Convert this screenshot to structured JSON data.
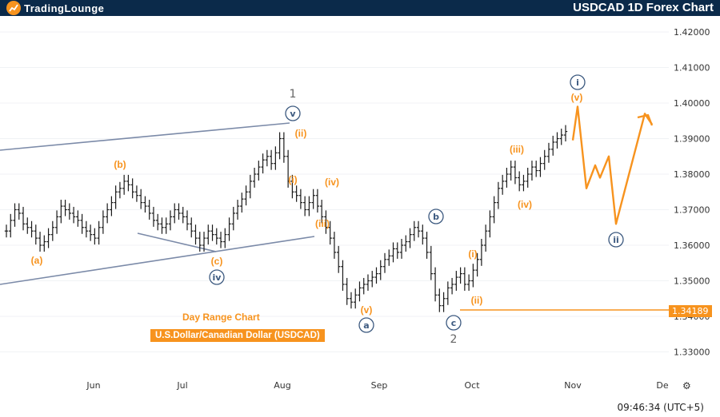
{
  "header": {
    "brand": "TradingLounge",
    "title": "USDCAD 1D Forex Chart"
  },
  "captions": {
    "chart_kind": "Day Range Chart",
    "instrument": "U.S.Dollar/Canadian Dollar (USDCAD)"
  },
  "price_tag": "1.34189",
  "clock": "09:46:34 (UTC+5)",
  "colors": {
    "header_bg": "#0b2a4a",
    "accent_orange": "#f7931e",
    "wave_navy": "#3d5a80",
    "channel_gray": "#7b8aa8"
  },
  "chart_data": {
    "type": "candlestick",
    "title": "USDCAD 1D Forex Chart",
    "y_ticks": [
      "1.42000",
      "1.41000",
      "1.40000",
      "1.39000",
      "1.38000",
      "1.37000",
      "1.36000",
      "1.35000",
      "1.34000",
      "1.33000"
    ],
    "x_ticks": [
      "Jun",
      "Jul",
      "Aug",
      "Sep",
      "Oct",
      "Nov",
      "De"
    ],
    "ylim": [
      1.327,
      1.424
    ],
    "current_price": 1.34189,
    "series": [
      {
        "values": [
          1.364,
          1.367,
          1.37,
          1.369,
          1.366,
          1.365,
          1.364,
          1.362,
          1.36,
          1.361,
          1.363,
          1.365,
          1.368,
          1.371,
          1.37,
          1.369,
          1.368,
          1.367,
          1.365,
          1.364,
          1.363,
          1.362,
          1.365,
          1.368,
          1.37,
          1.372,
          1.375,
          1.376,
          1.378,
          1.377,
          1.375,
          1.374,
          1.372,
          1.371,
          1.369,
          1.367,
          1.366,
          1.365,
          1.366,
          1.368,
          1.37,
          1.369,
          1.368,
          1.366,
          1.364,
          1.362,
          1.36,
          1.362,
          1.364,
          1.363,
          1.362,
          1.361,
          1.363,
          1.366,
          1.369,
          1.371,
          1.373,
          1.375,
          1.378,
          1.38,
          1.382,
          1.384,
          1.385,
          1.383,
          1.386,
          1.39,
          1.385,
          1.378,
          1.375,
          1.374,
          1.372,
          1.37,
          1.372,
          1.374,
          1.371,
          1.368,
          1.365,
          1.362,
          1.358,
          1.354,
          1.349,
          1.345,
          1.344,
          1.346,
          1.348,
          1.349,
          1.35,
          1.351,
          1.352,
          1.354,
          1.356,
          1.357,
          1.359,
          1.358,
          1.36,
          1.361,
          1.363,
          1.365,
          1.364,
          1.362,
          1.358,
          1.352,
          1.346,
          1.343,
          1.345,
          1.348,
          1.349,
          1.351,
          1.352,
          1.349,
          1.35,
          1.353,
          1.356,
          1.36,
          1.364,
          1.368,
          1.372,
          1.376,
          1.378,
          1.38,
          1.382,
          1.379,
          1.377,
          1.378,
          1.38,
          1.382,
          1.381,
          1.383,
          1.385,
          1.387,
          1.389,
          1.39,
          1.391,
          1.392
        ]
      }
    ],
    "projection_values": [
      1.399,
      1.376,
      1.3825,
      1.379,
      1.385,
      1.366,
      1.397,
      1.394
    ],
    "wave_labels": {
      "navy": [
        "1",
        "v",
        "iv",
        "b",
        "a",
        "c",
        "2",
        "i",
        "ii"
      ],
      "orange": [
        "(a)",
        "(b)",
        "(c)",
        "(ii)",
        "(i)",
        "(iv)",
        "(iii)",
        "(v)",
        "(i)",
        "(ii)",
        "(iii)",
        "(iv)",
        "(v)"
      ]
    }
  }
}
